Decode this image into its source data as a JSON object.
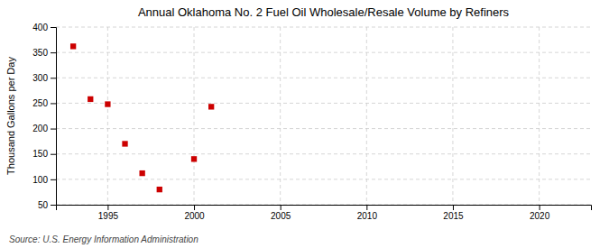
{
  "chart_data": {
    "type": "scatter",
    "title": "Annual Oklahoma No. 2 Fuel Oil Wholesale/Resale Volume by Refiners",
    "ylabel": "Thousand Gallons per Day",
    "source": "Source: U.S. Energy Information Administration",
    "x": [
      1993,
      1994,
      1995,
      1996,
      1997,
      1998,
      2000,
      2001
    ],
    "values": [
      362,
      258,
      248,
      170,
      112,
      80,
      140,
      243
    ],
    "color": "#cc0000",
    "marker": "square",
    "xlim": [
      1992,
      2023
    ],
    "ylim": [
      50,
      400
    ],
    "xticks": [
      1995,
      2000,
      2005,
      2010,
      2015,
      2020
    ],
    "yticks": [
      50,
      100,
      150,
      200,
      250,
      300,
      350,
      400
    ],
    "grid": true
  }
}
